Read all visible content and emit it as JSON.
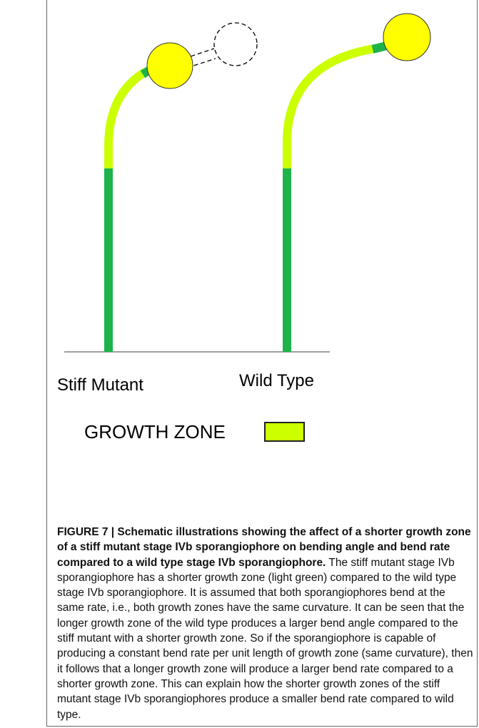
{
  "figure": {
    "labels": [
      "Stiff Mutant",
      "Wild Type"
    ],
    "legend": "GROWTH ZONE",
    "caption": {
      "title": "FIGURE 7 | Schematic illustrations showing the affect of a shorter growth zone of a stiff mutant stage IVb sporangiophore on bending angle and bend rate compared to a wild type stage IVb sporangiophore.",
      "text": "The stiff mutant stage IVb sporangiophore has a shorter growth zone (light green) compared to the wild type stage IVb sporangiophore. It is assumed that both sporangiophores bend at the same rate, i.e., both growth zones have the same curvature. It can be seen that the longer growth zone of the wild type produces a larger bend angle compared to the stiff mutant with a shorter growth zone. So if the sporangiophore is capable of producing a constant bend rate per unit length of growth zone (same curvature), then it follows that a longer growth zone will produce a larger bend rate compared to a shorter growth zone. This can explain how the shorter growth zones of the stiff mutant stage IVb sporangiophores produce a smaller bend rate compared to wild type."
    }
  }
}
